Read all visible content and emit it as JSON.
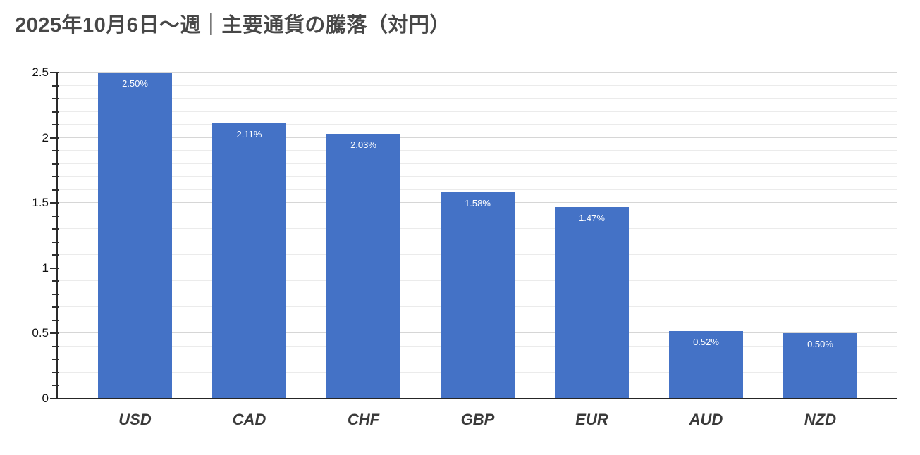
{
  "title": "2025年10月6日～週｜主要通貨の騰落（対円）",
  "chart_data": {
    "type": "bar",
    "title": "2025年10月6日～週｜主要通貨の騰落（対円）",
    "categories": [
      "USD",
      "CAD",
      "CHF",
      "GBP",
      "EUR",
      "AUD",
      "NZD"
    ],
    "values": [
      2.5,
      2.11,
      2.03,
      1.58,
      1.47,
      0.52,
      0.5
    ],
    "value_labels": [
      "2.50%",
      "2.11%",
      "2.03%",
      "1.58%",
      "1.47%",
      "0.52%",
      "0.50%"
    ],
    "xlabel": "",
    "ylabel": "",
    "ylim": [
      0,
      2.5
    ],
    "y_major_ticks": [
      0,
      0.5,
      1,
      1.5,
      2,
      2.5
    ],
    "y_major_tick_labels": [
      "0",
      "0.5",
      "1",
      "1.5",
      "2",
      "2.5"
    ],
    "y_minor_interval": 0.1,
    "grid": "on",
    "legend": "none",
    "colors": {
      "bar": "#4472c6",
      "bar_label_text": "#ffffff",
      "grid_minor": "#ebebeb",
      "grid_major": "#d6d6d6",
      "axis": "#262626",
      "title_text": "#474747",
      "category_text": "#3a3a3a",
      "tick_label_text": "#111111",
      "background": "#ffffff"
    }
  }
}
